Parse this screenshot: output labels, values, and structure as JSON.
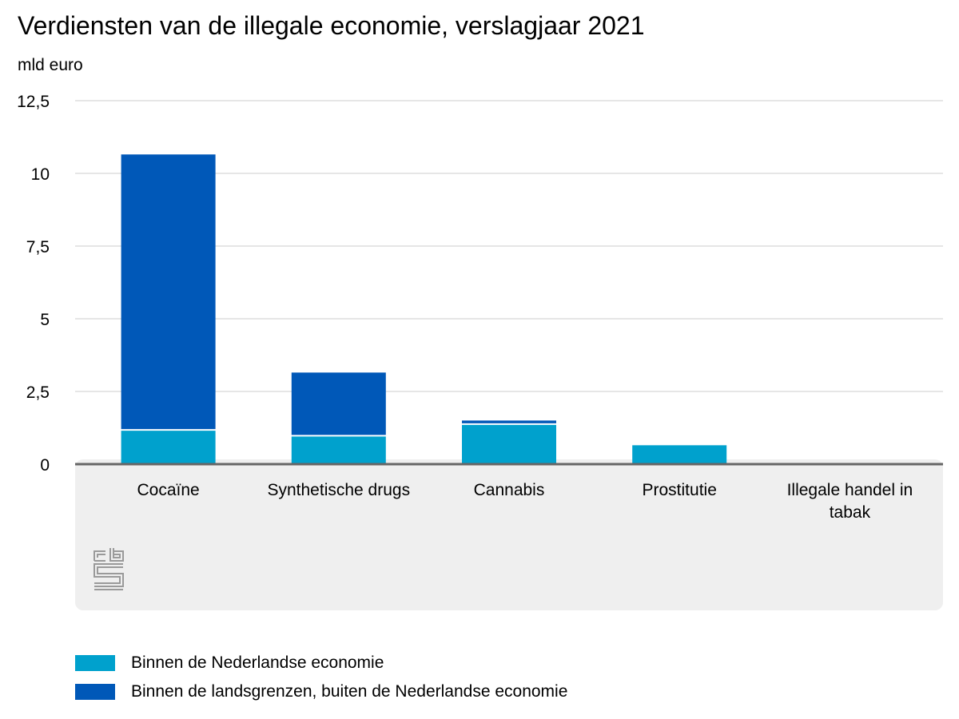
{
  "title": "Verdiensten van de illegale economie, verslagjaar 2021",
  "unit_label": "mld euro",
  "colors": {
    "series_1": "#00A1CD",
    "series_2": "#0058B8",
    "grid": "#cccccc",
    "baseline": "#666666",
    "panel": "#efefef"
  },
  "logo": {
    "icon": "cbs-logo-icon",
    "text": "cbs"
  },
  "chart_data": {
    "type": "bar",
    "stacked": true,
    "title": "Verdiensten van de illegale economie, verslagjaar 2021",
    "ylabel": "mld euro",
    "xlabel": "",
    "ylim": [
      0,
      12.5
    ],
    "yticks": [
      0,
      2.5,
      5,
      7.5,
      10,
      12.5
    ],
    "ytick_labels": [
      "0",
      "2,5",
      "5",
      "7,5",
      "10",
      "12,5"
    ],
    "grid": true,
    "legend_position": "bottom-left",
    "categories": [
      [
        "Cocaïne"
      ],
      [
        "Synthetische drugs"
      ],
      [
        "Cannabis"
      ],
      [
        "Prostitutie"
      ],
      [
        "Illegale handel in",
        "tabak"
      ]
    ],
    "series": [
      {
        "name": "Binnen de Nederlandse economie",
        "color": "#00A1CD",
        "values": [
          1.15,
          0.95,
          1.35,
          0.65,
          0.0
        ]
      },
      {
        "name": "Binnen de landsgrenzen, buiten de Nederlandse economie",
        "color": "#0058B8",
        "values": [
          9.5,
          2.2,
          0.15,
          0.0,
          0.0
        ]
      }
    ]
  }
}
